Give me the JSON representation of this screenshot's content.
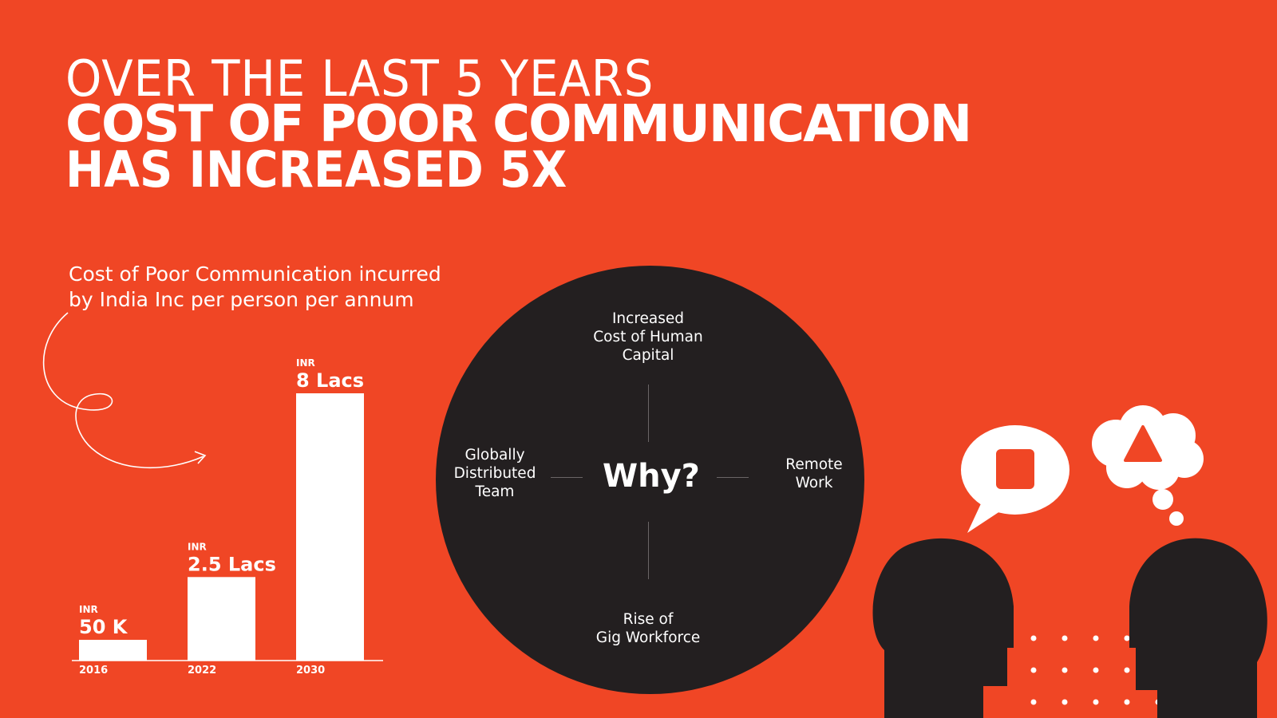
{
  "headline": {
    "line1": "OVER THE LAST 5 YEARS",
    "line2": "COST OF POOR COMMUNICATION",
    "line3_prefix": "HAS INCREASED ",
    "line3_bold": "5X"
  },
  "chart_data": {
    "type": "bar",
    "title": "Cost of Poor Communication incurred by India Inc per person per annum",
    "categories": [
      "2016",
      "2022",
      "2030"
    ],
    "values": [
      50000,
      250000,
      800000
    ],
    "unit": "INR",
    "value_labels": [
      "50 K",
      "2.5 Lacs",
      "8 Lacs"
    ],
    "currency_labels": [
      "INR",
      "INR",
      "INR"
    ],
    "ylim": [
      0,
      800000
    ],
    "grid": false,
    "bar_color": "#FFFFFF"
  },
  "why": {
    "center": "Why?",
    "top": "Increased\nCost of Human\nCapital",
    "left": "Globally\nDistributed\nTeam",
    "right": "Remote\nWork",
    "bottom": "Rise of\nGig Workforce"
  },
  "colors": {
    "background": "#F04625",
    "dark": "#231F20",
    "foreground": "#FFFFFF"
  },
  "icons": [
    "speech-bubble-icon",
    "thought-bubble-icon",
    "square-icon",
    "triangle-icon",
    "head-silhouette-icon",
    "swirl-arrow-icon",
    "dot-grid-icon"
  ]
}
